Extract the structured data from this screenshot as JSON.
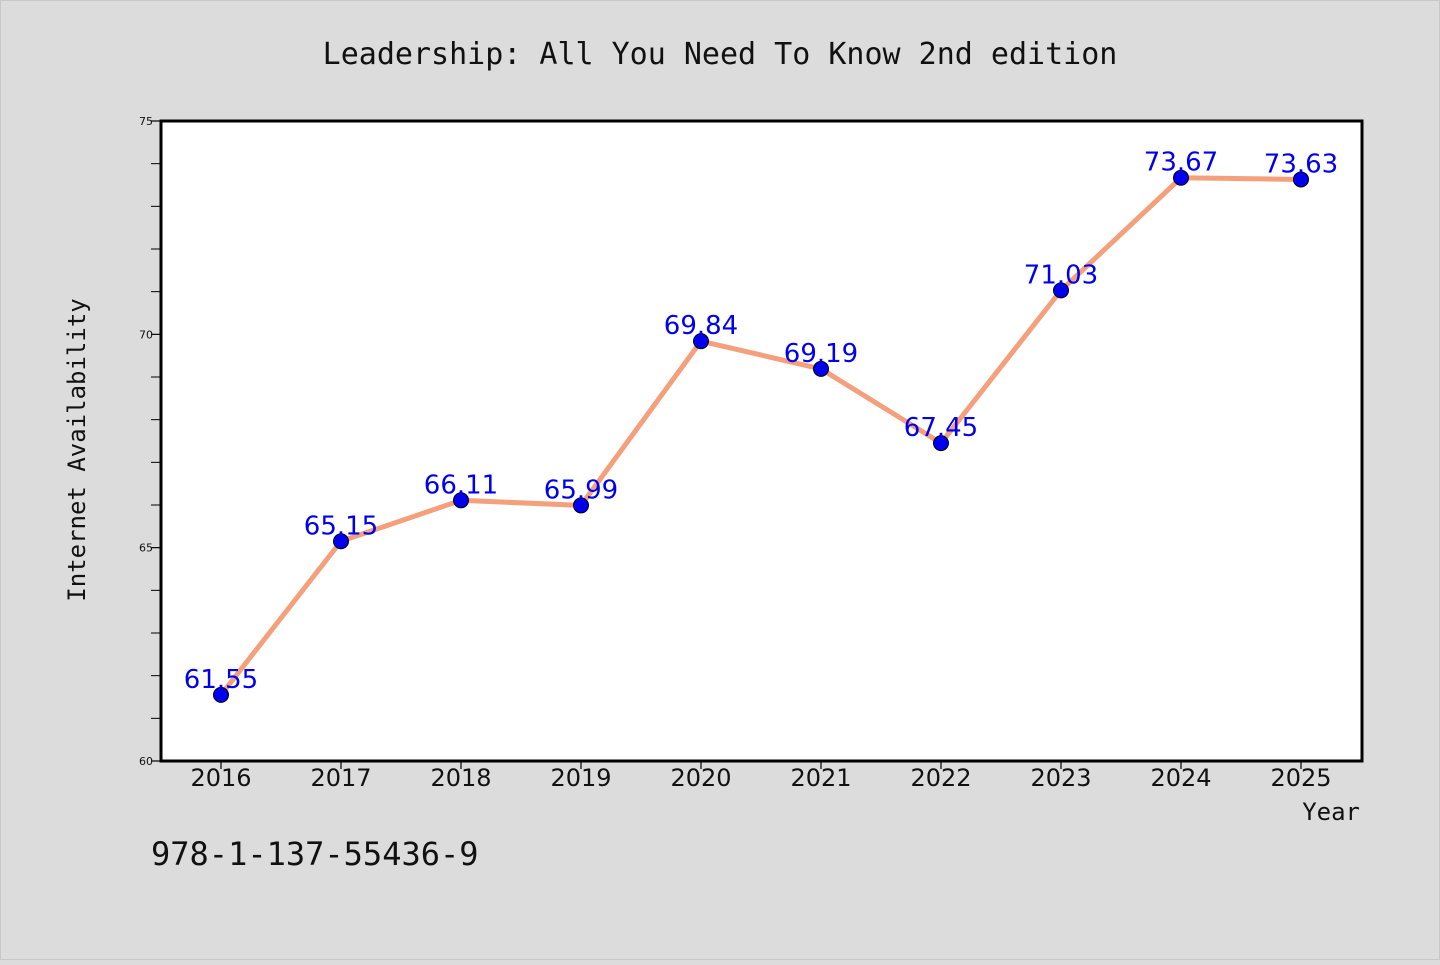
{
  "chart_data": {
    "type": "line",
    "title": "Leadership: All You Need To Know 2nd edition",
    "xlabel": "Year",
    "ylabel": "Internet Availability",
    "x": [
      "2016",
      "2017",
      "2018",
      "2019",
      "2020",
      "2021",
      "2022",
      "2023",
      "2024",
      "2025"
    ],
    "series": [
      {
        "values": [
          61.55,
          65.15,
          66.11,
          65.99,
          69.84,
          69.19,
          67.45,
          71.03,
          73.67,
          73.63
        ],
        "labels": [
          "61.55",
          "65.15",
          "66.11",
          "65.99",
          "69.84",
          "69.19",
          "67.45",
          "71.03",
          "73.67",
          "73.63"
        ],
        "line_color": "#f4a07c",
        "marker_color": "#0000ee",
        "label_color": "#0000ee"
      }
    ],
    "ylim": [
      60,
      75
    ],
    "yticks": [
      "60",
      "65",
      "70",
      "75"
    ],
    "grid": false,
    "legend": "none",
    "background": "#dcdcdc",
    "plot_background": "#ffffff"
  },
  "footer": {
    "isbn": "978-1-137-55436-9"
  }
}
